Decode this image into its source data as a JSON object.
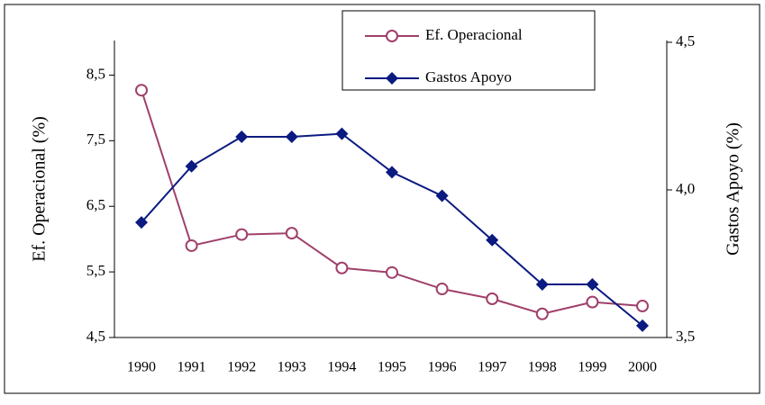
{
  "chart_data": {
    "type": "line",
    "categories": [
      "1990",
      "1991",
      "1992",
      "1993",
      "1994",
      "1995",
      "1996",
      "1997",
      "1998",
      "1999",
      "2000"
    ],
    "y_label": "Ef. Operacional (%)",
    "y2_label": "Gastos Apoyo (%)",
    "ylim": [
      4.5,
      9.0
    ],
    "yticks": [
      {
        "value": 4.5,
        "label": "4,5"
      },
      {
        "value": 5.5,
        "label": "5,5"
      },
      {
        "value": 6.5,
        "label": "6,5"
      },
      {
        "value": 7.5,
        "label": "7,5"
      },
      {
        "value": 8.5,
        "label": "8,5"
      }
    ],
    "y2lim": [
      3.5,
      4.5
    ],
    "y2ticks": [
      {
        "value": 3.5,
        "label": "3,5"
      },
      {
        "value": 4.0,
        "label": "4,0"
      },
      {
        "value": 4.5,
        "label": "4,5"
      }
    ],
    "series": [
      {
        "name": "Ef. Operacional",
        "color": "#a0406b",
        "marker": "circle",
        "values": [
          8.27,
          5.9,
          6.07,
          6.09,
          5.56,
          5.49,
          5.24,
          5.09,
          4.86,
          5.04,
          4.98
        ]
      },
      {
        "name": "Gastos Apoyo",
        "color": "#0a1a80",
        "marker": "diamond",
        "axis": "y2",
        "values": [
          3.89,
          4.08,
          4.18,
          4.18,
          4.19,
          4.06,
          3.98,
          3.83,
          3.68,
          3.68,
          3.54
        ]
      }
    ]
  }
}
